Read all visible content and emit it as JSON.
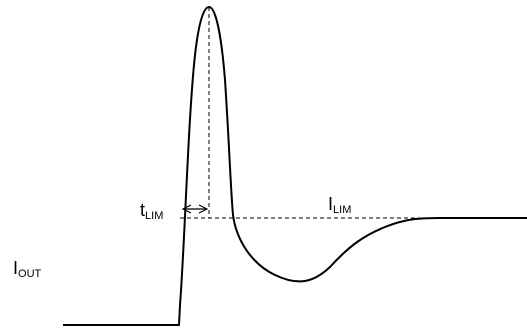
{
  "labels": {
    "t_lim": {
      "main": "t",
      "sub": "LIM"
    },
    "i_lim": {
      "main": "I",
      "sub": "LIM"
    },
    "i_out": {
      "main": "I",
      "sub": "OUT"
    }
  },
  "colors": {
    "stroke": "#000000",
    "background": "#ffffff"
  }
}
